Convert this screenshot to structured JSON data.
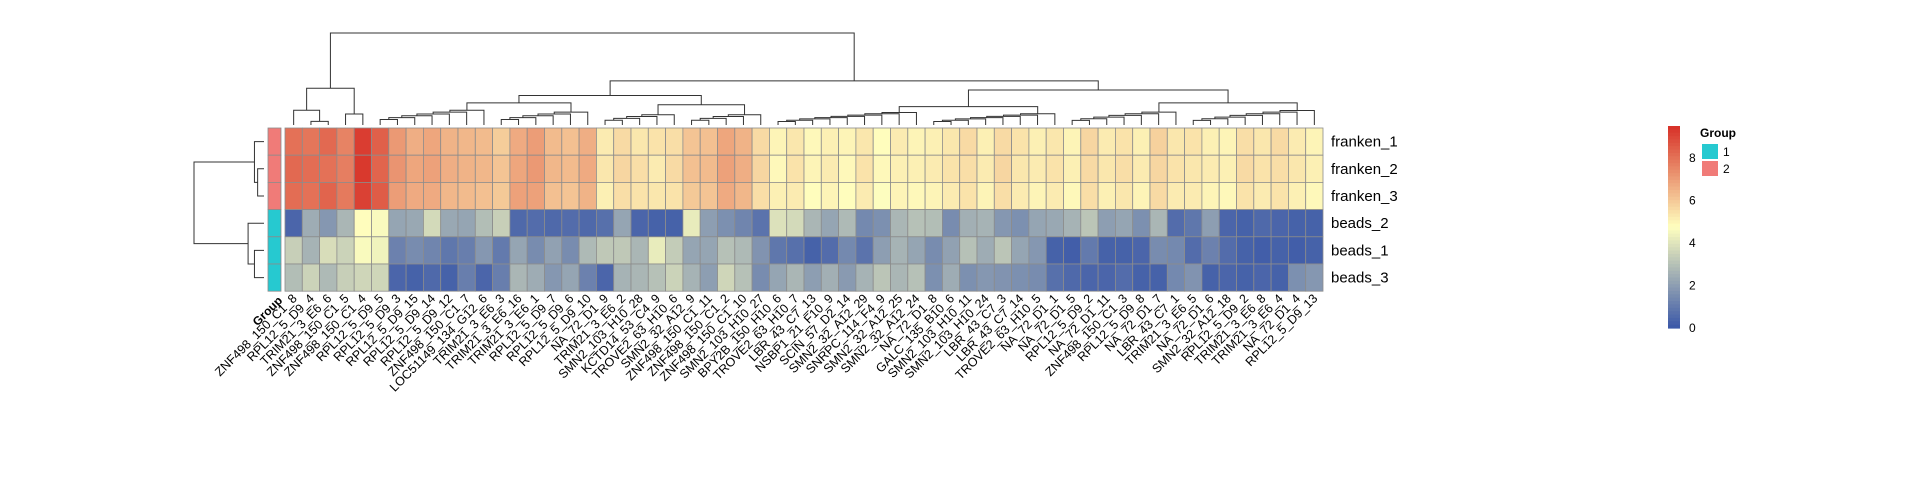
{
  "chart_data": {
    "type": "heatmap",
    "title": "",
    "xlabel": "",
    "ylabel": "",
    "rows": [
      "franken_1",
      "franken_2",
      "franken_3",
      "beads_2",
      "beads_1",
      "beads_3"
    ],
    "row_groups": [
      "2",
      "2",
      "2",
      "1",
      "1",
      "1"
    ],
    "columns": [
      "ZNF498_150_C1_8",
      "RPL12_5_D9_4",
      "TRIM21_3_E6_6",
      "ZNF498_150_C1_5",
      "ZNF498_150_C1_4",
      "RPL12_5_D9_5",
      "RPL12_5_D9_3",
      "RPL12_5_D9_15",
      "RPL12_5_D9_14",
      "RPL12_5_D9_12",
      "ZNF498_150_C1_7",
      "LOC51149_134_G12_6",
      "TRIM21_3_E6_3",
      "TRIM21_3_E6_16",
      "TRIM21_3_E6_1",
      "RPL12_5_D9_7",
      "RPL12_5_D9_6",
      "RPL12_5_D9_10",
      "NA_72_D1_9",
      "TRIM21_3_E6_2",
      "SMN2_103_H10_28",
      "KCTD14_53_C4_9",
      "TROVE2_63_H10_6",
      "SMN2_32_A12_9",
      "ZNF498_150_C1_11",
      "ZNF498_150_C1_2",
      "ZNF498_150_C1_10",
      "SMN2_103_H10_27",
      "BPY2B_150_H10_6",
      "TROVE2_63_H10_7",
      "LBR_43_C7_13",
      "NSBP1_21_F10_9",
      "SCIN_57_D2_14",
      "SMN2_32_A12_29",
      "SNRPC_114_F4_9",
      "SMN2_32_A12_25",
      "SMN2_32_A12_24",
      "NA_72_D1_8",
      "GALC_135_B10_6",
      "SMN2_103_H10_11",
      "SMN2_103_H10_24",
      "LBR_43_C7_3",
      "LBR_43_C7_14",
      "TROVE2_63_H10_5",
      "NA_72_D1_1",
      "NA_72_D1_5",
      "RPL12_5_D9_2",
      "NA_72_D1_11",
      "ZNF498_150_C1_3",
      "RPL12_5_D9_8",
      "NA_72_D1_7",
      "LBR_43_C7_1",
      "TRIM21_3_E6_5",
      "NA_72_D1_6",
      "SMN2_32_A12_18",
      "RPL12_5_D9_2",
      "TRIM21_3_E6_8",
      "TRIM21_3_E6_4",
      "NA_72_D1_4",
      "RPL12_5_D9_13"
    ],
    "values": [
      [
        8.0,
        7.9,
        8.2,
        7.6,
        9.2,
        8.4,
        7.1,
        6.6,
        6.8,
        6.5,
        6.4,
        6.3,
        5.9,
        6.7,
        7.0,
        6.3,
        6.2,
        6.6,
        5.2,
        5.6,
        5.3,
        5.4,
        5.5,
        6.1,
        6.2,
        6.8,
        6.5,
        5.6,
        5.0,
        5.3,
        4.9,
        5.1,
        5.0,
        5.3,
        4.8,
        5.2,
        5.0,
        5.1,
        5.3,
        5.6,
        5.1,
        5.6,
        5.4,
        5.1,
        5.3,
        5.0,
        5.7,
        5.2,
        5.4,
        5.1,
        5.8,
        5.3,
        5.4,
        5.1,
        5.0,
        5.5,
        5.3,
        5.6,
        5.2,
        5.0
      ],
      [
        8.2,
        8.1,
        8.0,
        7.7,
        9.3,
        8.3,
        7.2,
        6.8,
        6.9,
        6.6,
        6.5,
        6.4,
        6.1,
        6.8,
        7.1,
        6.4,
        6.3,
        6.7,
        5.3,
        5.7,
        5.5,
        5.2,
        5.6,
        6.2,
        6.3,
        6.9,
        6.6,
        5.7,
        4.9,
        5.4,
        5.0,
        5.2,
        4.9,
        5.4,
        4.9,
        5.1,
        5.1,
        5.2,
        5.4,
        5.5,
        5.2,
        5.7,
        5.3,
        5.2,
        5.4,
        5.1,
        5.6,
        5.3,
        5.5,
        5.2,
        5.7,
        5.4,
        5.3,
        5.2,
        5.1,
        5.6,
        5.4,
        5.5,
        5.3,
        5.1
      ],
      [
        8.1,
        8.0,
        8.3,
        7.8,
        9.1,
        8.5,
        7.0,
        6.7,
        6.7,
        6.4,
        6.3,
        6.2,
        6.0,
        6.9,
        6.9,
        6.2,
        6.1,
        6.5,
        5.1,
        5.5,
        5.4,
        5.3,
        5.4,
        6.0,
        6.1,
        6.7,
        6.4,
        5.5,
        5.1,
        5.2,
        4.8,
        5.0,
        4.8,
        5.2,
        4.7,
        5.0,
        4.9,
        5.0,
        5.2,
        5.4,
        5.0,
        5.5,
        5.2,
        5.0,
        5.2,
        4.9,
        5.5,
        5.1,
        5.3,
        5.0,
        5.6,
        5.2,
        5.2,
        5.0,
        4.9,
        5.4,
        5.2,
        5.4,
        5.1,
        4.9
      ],
      [
        0.4,
        2.4,
        1.8,
        2.7,
        4.8,
        4.6,
        2.2,
        2.3,
        3.7,
        2.3,
        2.2,
        2.9,
        3.4,
        0.5,
        0.6,
        0.5,
        0.6,
        0.5,
        0.7,
        2.2,
        0.4,
        0.3,
        0.3,
        4.2,
        2.0,
        1.6,
        1.3,
        0.8,
        3.9,
        3.7,
        2.7,
        2.2,
        2.8,
        1.4,
        1.6,
        2.7,
        3.0,
        2.9,
        1.5,
        2.5,
        2.6,
        1.8,
        1.6,
        2.2,
        2.3,
        2.6,
        3.1,
        2.0,
        2.2,
        1.6,
        2.7,
        0.6,
        0.9,
        2.0,
        0.4,
        0.3,
        0.5,
        0.4,
        0.3,
        0.3
      ],
      [
        3.4,
        2.6,
        3.8,
        3.5,
        4.6,
        4.4,
        1.2,
        1.5,
        1.3,
        0.9,
        1.1,
        1.8,
        1.0,
        2.2,
        1.5,
        2.1,
        1.5,
        2.8,
        3.2,
        3.2,
        2.7,
        4.2,
        3.3,
        2.2,
        2.2,
        3.0,
        2.8,
        1.7,
        0.9,
        0.7,
        0.3,
        0.6,
        1.4,
        0.8,
        2.0,
        2.6,
        2.2,
        1.5,
        2.1,
        3.0,
        2.4,
        3.1,
        2.2,
        1.8,
        0.3,
        0.2,
        1.0,
        0.3,
        0.3,
        0.4,
        1.5,
        1.4,
        0.6,
        1.2,
        0.6,
        0.3,
        0.2,
        0.3,
        0.2,
        0.3
      ],
      [
        2.9,
        3.5,
        2.8,
        3.4,
        3.6,
        3.6,
        0.4,
        0.3,
        0.5,
        0.3,
        1.1,
        0.4,
        1.1,
        2.7,
        2.4,
        1.8,
        2.2,
        1.2,
        0.4,
        2.6,
        2.7,
        3.0,
        3.5,
        2.6,
        2.0,
        3.6,
        3.0,
        1.5,
        2.2,
        2.7,
        2.0,
        2.5,
        1.9,
        2.6,
        3.1,
        2.7,
        3.0,
        1.6,
        2.4,
        1.6,
        1.8,
        1.7,
        1.6,
        1.5,
        0.7,
        0.5,
        0.4,
        0.4,
        0.6,
        0.3,
        0.3,
        1.4,
        1.7,
        0.3,
        0.4,
        0.3,
        0.4,
        0.3,
        1.6,
        1.8
      ]
    ],
    "value_range": [
      0,
      9.5
    ],
    "colorbar_ticks": [
      0,
      2,
      4,
      6,
      8
    ],
    "colorscale": [
      "#3A57A8",
      "#FFFFBF",
      "#D73027"
    ],
    "annotation": {
      "title": "Group",
      "levels": [
        {
          "label": "1",
          "color": "#26C9D0"
        },
        {
          "label": "2",
          "color": "#F07B78"
        }
      ]
    },
    "annotation_axis_label": "Group",
    "row_dendrogram": true,
    "column_dendrogram": true,
    "grid": true
  }
}
